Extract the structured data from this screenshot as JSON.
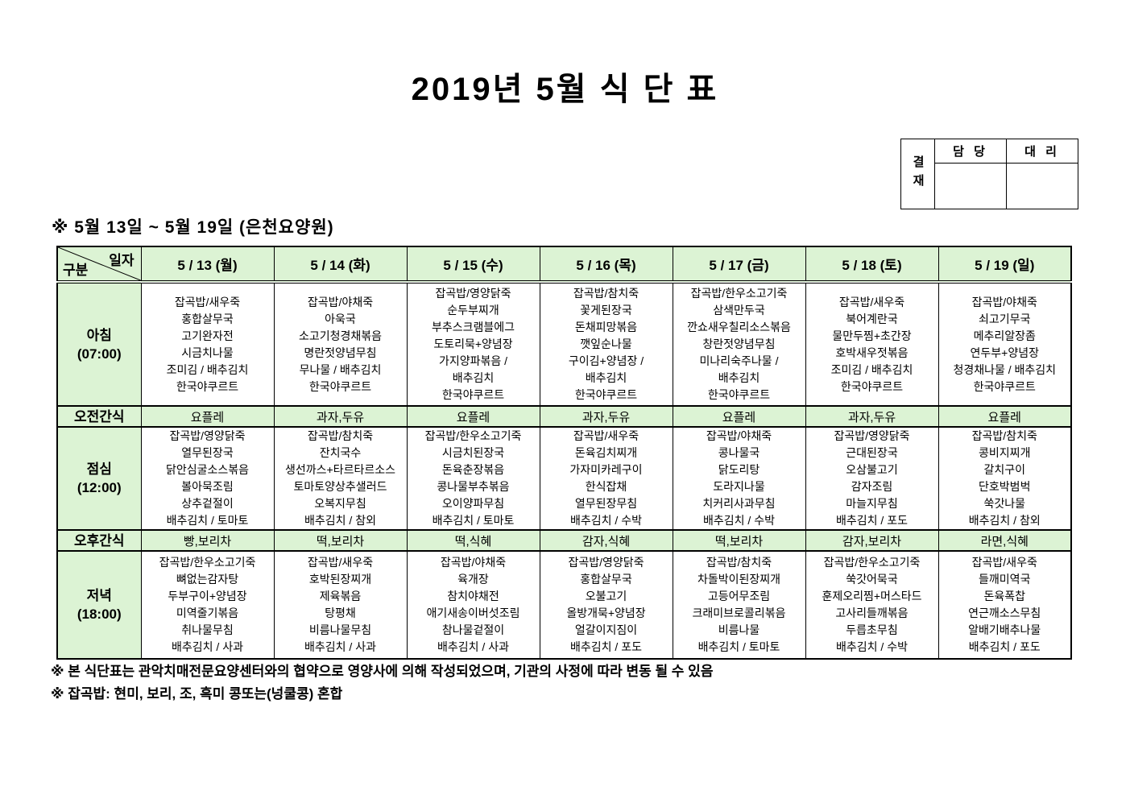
{
  "title": "2019년 5월 식 단 표",
  "approval": {
    "label": "결재",
    "col1": "담 당",
    "col2": "대 리"
  },
  "subtitle": "※ 5월 13일 ~ 5월 19일 (은천요양원)",
  "table": {
    "corner": {
      "top": "일자",
      "bottom": "구분"
    },
    "days": [
      "5 / 13 (월)",
      "5 / 14 (화)",
      "5 / 15 (수)",
      "5 / 16 (목)",
      "5 / 17 (금)",
      "5 / 18 (토)",
      "5 / 19 (일)"
    ],
    "rows": [
      {
        "id": "breakfast",
        "type": "meal",
        "label_lines": [
          "아침",
          "(07:00)"
        ],
        "cells": [
          [
            "잡곡밥/새우죽",
            "홍합살무국",
            "고기완자전",
            "시금치나물",
            "조미김 / 배추김치",
            "한국야쿠르트"
          ],
          [
            "잡곡밥/야채죽",
            "아욱국",
            "소고기청경채볶음",
            "명란젓양념무침",
            "무나물 / 배추김치",
            "한국야쿠르트"
          ],
          [
            "잡곡밥/영양닭죽",
            "순두부찌개",
            "부추스크램블에그",
            "도토리묵+양념장",
            "가지양파볶음 /",
            "배추김치",
            "한국야쿠르트"
          ],
          [
            "잡곡밥/참치죽",
            "꽃게된장국",
            "돈채피망볶음",
            "깻잎순나물",
            "구이김+양념장 /",
            "배추김치",
            "한국야쿠르트"
          ],
          [
            "잡곡밥/한우소고기죽",
            "삼색만두국",
            "깐쇼새우칠리소스볶음",
            "창란젓양념무침",
            "미나리숙주나물 /",
            "배추김치",
            "한국야쿠르트"
          ],
          [
            "잡곡밥/새우죽",
            "북어계란국",
            "물만두찜+초간장",
            "호박새우젓볶음",
            "조미김 / 배추김치",
            "한국야쿠르트"
          ],
          [
            "잡곡밥/야채죽",
            "쇠고기무국",
            "메추리알장좀",
            "연두부+양념장",
            "청경채나물 / 배추김치",
            "한국야쿠르트"
          ]
        ]
      },
      {
        "id": "am-snack",
        "type": "snack",
        "label_lines": [
          "오전간식"
        ],
        "cells": [
          "요플레",
          "과자,두유",
          "요플레",
          "과자,두유",
          "요플레",
          "과자,두유",
          "요플레"
        ]
      },
      {
        "id": "lunch",
        "type": "meal",
        "label_lines": [
          "점심",
          "(12:00)"
        ],
        "cells": [
          [
            "잡곡밥/영양닭죽",
            "열무된장국",
            "닭안심굴소스볶음",
            "볼아묵조림",
            "상추겉절이",
            "배추김치 / 토마토"
          ],
          [
            "잡곡밥/참치죽",
            "잔치국수",
            "생선까스+타르타르소스",
            "토마토양상추샐러드",
            "오복지무침",
            "배추김치 / 참외"
          ],
          [
            "잡곡밥/한우소고기죽",
            "시금치된장국",
            "돈육춘장볶음",
            "콩나물부추볶음",
            "오이양파무침",
            "배추김치 / 토마토"
          ],
          [
            "잡곡밥/새우죽",
            "돈육김치찌개",
            "가자미카레구이",
            "한식잡채",
            "열무된장무침",
            "배추김치 / 수박"
          ],
          [
            "잡곡밥/야채죽",
            "콩나물국",
            "닭도리탕",
            "도라지나물",
            "치커리사과무침",
            "배추김치 / 수박"
          ],
          [
            "잡곡밥/영양닭죽",
            "근대된장국",
            "오삼불고기",
            "감자조림",
            "마늘지무침",
            "배추김치 / 포도"
          ],
          [
            "잡곡밥/참치죽",
            "콩비지찌개",
            "갈치구이",
            "단호박범벅",
            "쑥갓나물",
            "배추김치 / 참외"
          ]
        ]
      },
      {
        "id": "pm-snack",
        "type": "snack",
        "label_lines": [
          "오후간식"
        ],
        "cells": [
          "빵,보리차",
          "떡,보리차",
          "떡,식혜",
          "감자,식혜",
          "떡,보리차",
          "감자,보리차",
          "라면,식혜"
        ]
      },
      {
        "id": "dinner",
        "type": "meal",
        "label_lines": [
          "저녁",
          "(18:00)"
        ],
        "cells": [
          [
            "잡곡밥/한우소고기죽",
            "뼈없는감자탕",
            "두부구이+양념장",
            "미역줄기볶음",
            "취나물무침",
            "배추김치 / 사과"
          ],
          [
            "잡곡밥/새우죽",
            "호박된장찌개",
            "제육볶음",
            "탕평채",
            "비름나물무침",
            "배추김치 / 사과"
          ],
          [
            "잡곡밥/야채죽",
            "육개장",
            "참치야채전",
            "애기새송이버섯조림",
            "참나물겉절이",
            "배추김치 / 사과"
          ],
          [
            "잡곡밥/영양닭죽",
            "홍합살무국",
            "오불고기",
            "올방개묵+양념장",
            "얼갈이지짐이",
            "배추김치 / 포도"
          ],
          [
            "잡곡밥/참치죽",
            "차돌박이된장찌개",
            "고등어무조림",
            "크래미브로콜리볶음",
            "비름나물",
            "배추김치 / 토마토"
          ],
          [
            "잡곡밥/한우소고기죽",
            "쑥갓어묵국",
            "훈제오리찜+머스타드",
            "고사리들깨볶음",
            "두릅초무침",
            "배추김치 / 수박"
          ],
          [
            "잡곡밥/새우죽",
            "들깨미역국",
            "돈육폭찹",
            "연근깨소스무침",
            "알배기배추나물",
            "배추김치 / 포도"
          ]
        ]
      }
    ]
  },
  "notes": [
    "※ 본 식단표는 관악치매전문요양센터와의 협약으로 영양사에 의해 작성되었으며, 기관의 사정에 따라 변동 될 수 있음",
    "※ 잡곡밥: 현미, 보리, 조, 흑미 콩또는(넝쿨콩) 혼합"
  ],
  "colors": {
    "header_green": "#dcf3d4",
    "border": "#000000"
  }
}
